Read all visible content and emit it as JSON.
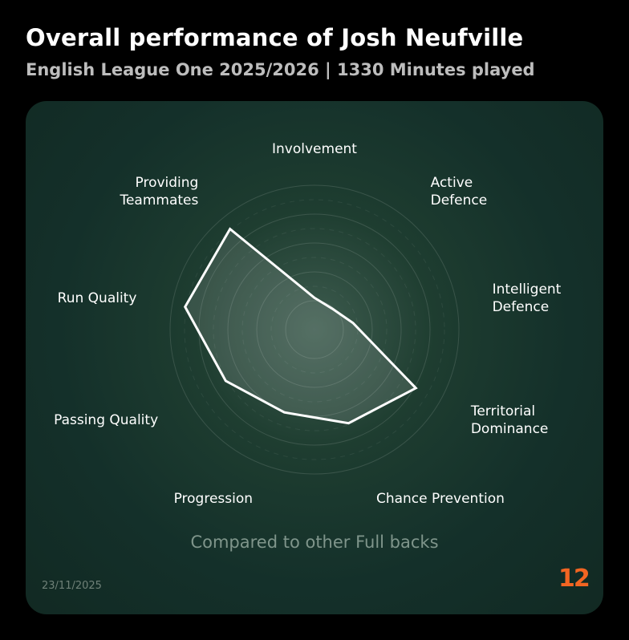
{
  "header": {
    "title": "Overall performance of Josh Neufville",
    "subtitle": "English League One 2025/2026 | 1330 Minutes played"
  },
  "footer": {
    "comparison": "Compared to other Full backs",
    "date": "23/11/2025",
    "logo": "12"
  },
  "colors": {
    "background": "#000000",
    "card": "#14302a",
    "accent": "#f26522",
    "series_stroke": "#ffffff"
  },
  "chart_data": {
    "type": "radar",
    "categories": [
      "Involvement",
      "Active\nDefence",
      "Intelligent\nDefence",
      "Territorial\nDominance",
      "Chance Prevention",
      "Progression",
      "Passing Quality",
      "Run Quality",
      "Providing\nTeammates"
    ],
    "series": [
      {
        "values": [
          22,
          19,
          27,
          81,
          69,
          61,
          71,
          91,
          91
        ]
      }
    ],
    "range": [
      0,
      100
    ],
    "rings": 5,
    "grid": true
  }
}
